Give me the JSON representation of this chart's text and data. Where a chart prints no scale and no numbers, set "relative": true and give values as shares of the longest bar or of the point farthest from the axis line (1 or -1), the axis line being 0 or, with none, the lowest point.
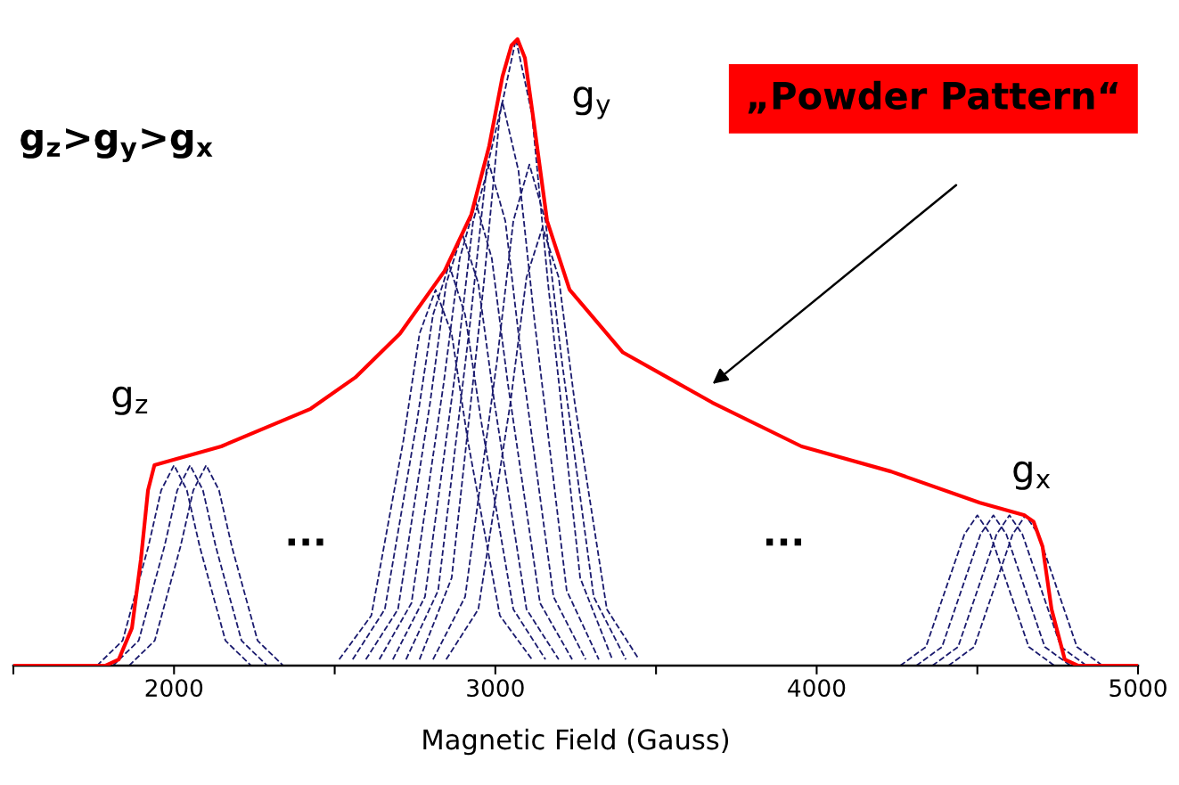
{
  "chart_data": {
    "type": "line",
    "relative": true,
    "xlabel": "Magnetic Field (Gauss)",
    "xlim": [
      1500,
      5000
    ],
    "xticks": [
      {
        "value": 1500,
        "label": null
      },
      2000,
      {
        "value": 2500,
        "label": null
      },
      3000,
      {
        "value": 3500,
        "label": null
      },
      4000,
      {
        "value": 4500,
        "label": null
      },
      5000
    ],
    "grid": false,
    "legend": false,
    "tick_labels": "x",
    "series": [
      {
        "color": "#ff0000",
        "line_style": "solid",
        "x": [
          1500,
          1786,
          1828,
          1869,
          1897,
          1919,
          1939,
          2008,
          2147,
          2286,
          2425,
          2564,
          2703,
          2842,
          2925,
          2981,
          3022,
          3050,
          3069,
          3092,
          3119,
          3161,
          3231,
          3397,
          3675,
          3953,
          4231,
          4508,
          4647,
          4675,
          4703,
          4731,
          4772,
          4814,
          5000
        ],
        "values": [
          0,
          0,
          0.01,
          0.06,
          0.17,
          0.28,
          0.32,
          0.33,
          0.35,
          0.38,
          0.41,
          0.46,
          0.53,
          0.63,
          0.72,
          0.83,
          0.94,
          0.99,
          1.0,
          0.97,
          0.87,
          0.71,
          0.6,
          0.5,
          0.42,
          0.35,
          0.31,
          0.26,
          0.24,
          0.23,
          0.19,
          0.09,
          0.01,
          0,
          0
        ]
      },
      {
        "color": "#1a1a6e",
        "line_style": "dashed",
        "x": [
          1760,
          1840,
          1920,
          1960,
          2000,
          2040,
          2080,
          2160,
          2240
        ],
        "values": [
          0.0,
          0.04,
          0.19,
          0.28,
          0.32,
          0.28,
          0.19,
          0.04,
          0.0
        ]
      },
      {
        "color": "#1a1a6e",
        "line_style": "dashed",
        "x": [
          1810,
          1890,
          1970,
          2010,
          2050,
          2090,
          2130,
          2210,
          2290
        ],
        "values": [
          0.0,
          0.04,
          0.19,
          0.28,
          0.32,
          0.28,
          0.19,
          0.04,
          0.0
        ]
      },
      {
        "color": "#1a1a6e",
        "line_style": "dashed",
        "x": [
          1860,
          1940,
          2020,
          2060,
          2100,
          2140,
          2180,
          2260,
          2340
        ],
        "values": [
          0.0,
          0.04,
          0.19,
          0.28,
          0.32,
          0.28,
          0.19,
          0.04,
          0.0
        ]
      },
      {
        "color": "#1a1a6e",
        "line_style": "dashed",
        "x": [
          2514,
          2614,
          2714,
          2764,
          2814,
          2864,
          2914,
          3014,
          3114
        ],
        "values": [
          0.01,
          0.08,
          0.36,
          0.53,
          0.6,
          0.53,
          0.36,
          0.08,
          0.01
        ]
      },
      {
        "color": "#1a1a6e",
        "line_style": "dashed",
        "x": [
          2556,
          2656,
          2756,
          2806,
          2856,
          2906,
          2956,
          3056,
          3156
        ],
        "values": [
          0.01,
          0.09,
          0.39,
          0.56,
          0.64,
          0.56,
          0.39,
          0.09,
          0.01
        ]
      },
      {
        "color": "#1a1a6e",
        "line_style": "dashed",
        "x": [
          2597,
          2697,
          2797,
          2847,
          2897,
          2947,
          2997,
          3097,
          3197
        ],
        "values": [
          0.01,
          0.09,
          0.42,
          0.61,
          0.69,
          0.61,
          0.42,
          0.09,
          0.01
        ]
      },
      {
        "color": "#1a1a6e",
        "line_style": "dashed",
        "x": [
          2639,
          2739,
          2839,
          2889,
          2939,
          2989,
          3039,
          3139,
          3239
        ],
        "values": [
          0.01,
          0.1,
          0.45,
          0.65,
          0.74,
          0.65,
          0.45,
          0.1,
          0.01
        ]
      },
      {
        "color": "#1a1a6e",
        "line_style": "dashed",
        "x": [
          2681,
          2781,
          2881,
          2931,
          2981,
          3031,
          3081,
          3181,
          3281
        ],
        "values": [
          0.01,
          0.11,
          0.49,
          0.71,
          0.8,
          0.71,
          0.49,
          0.11,
          0.01
        ]
      },
      {
        "color": "#1a1a6e",
        "line_style": "dashed",
        "x": [
          2722,
          2822,
          2922,
          2972,
          3022,
          3072,
          3122,
          3222,
          3322
        ],
        "values": [
          0.01,
          0.12,
          0.55,
          0.79,
          0.9,
          0.79,
          0.55,
          0.12,
          0.01
        ]
      },
      {
        "color": "#1a1a6e",
        "line_style": "dashed",
        "x": [
          2764,
          2864,
          2964,
          3014,
          3064,
          3114,
          3164,
          3264,
          3364
        ],
        "values": [
          0.01,
          0.14,
          0.61,
          0.88,
          1.0,
          0.88,
          0.61,
          0.14,
          0.01
        ]
      },
      {
        "color": "#1a1a6e",
        "line_style": "dashed",
        "x": [
          2806,
          2906,
          3006,
          3056,
          3106,
          3156,
          3206,
          3306,
          3406
        ],
        "values": [
          0.01,
          0.11,
          0.49,
          0.71,
          0.8,
          0.71,
          0.49,
          0.11,
          0.01
        ]
      },
      {
        "color": "#1a1a6e",
        "line_style": "dashed",
        "x": [
          2847,
          2947,
          3047,
          3097,
          3147,
          3197,
          3247,
          3347,
          3447
        ],
        "values": [
          0.01,
          0.09,
          0.42,
          0.62,
          0.7,
          0.62,
          0.42,
          0.09,
          0.01
        ]
      },
      {
        "color": "#1a1a6e",
        "line_style": "dashed",
        "x": [
          4260,
          4340,
          4420,
          4460,
          4500,
          4540,
          4580,
          4660,
          4740
        ],
        "values": [
          0.0,
          0.03,
          0.15,
          0.21,
          0.24,
          0.21,
          0.15,
          0.03,
          0.0
        ]
      },
      {
        "color": "#1a1a6e",
        "line_style": "dashed",
        "x": [
          4310,
          4390,
          4470,
          4510,
          4550,
          4590,
          4630,
          4710,
          4790
        ],
        "values": [
          0.0,
          0.03,
          0.15,
          0.21,
          0.24,
          0.21,
          0.15,
          0.03,
          0.0
        ]
      },
      {
        "color": "#1a1a6e",
        "line_style": "dashed",
        "x": [
          4360,
          4440,
          4520,
          4560,
          4600,
          4640,
          4680,
          4760,
          4840
        ],
        "values": [
          0.0,
          0.03,
          0.15,
          0.21,
          0.24,
          0.21,
          0.15,
          0.03,
          0.0
        ]
      },
      {
        "color": "#1a1a6e",
        "line_style": "dashed",
        "x": [
          4410,
          4490,
          4570,
          4610,
          4650,
          4690,
          4730,
          4810,
          4890
        ],
        "values": [
          0.0,
          0.03,
          0.15,
          0.21,
          0.24,
          0.21,
          0.15,
          0.03,
          0.0
        ]
      }
    ],
    "annotations": [
      {
        "text": "g$_{z}$",
        "x": 1940,
        "y": 0.32
      },
      {
        "text": "g$_{y}$",
        "x": 3069,
        "y": 1.0
      },
      {
        "text": "g$_{x}$",
        "x": 4650,
        "y": 0.24
      },
      "g$_{z}$>g$_{y}$>g$_{x}$",
      "...",
      "...",
      "„Powder Pattern“"
    ]
  }
}
